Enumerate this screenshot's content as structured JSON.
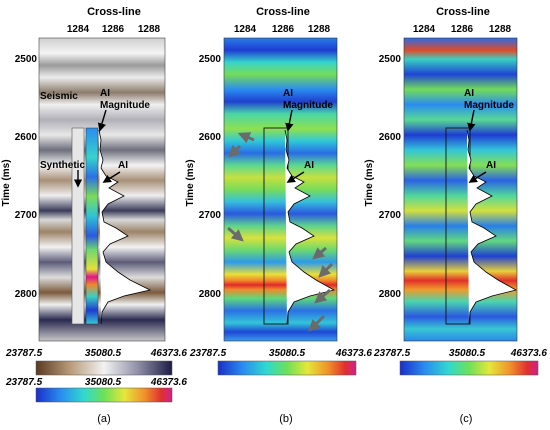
{
  "figure": {
    "panels": [
      {
        "id": "a",
        "caption": "(a)",
        "top_axis_title": "Cross-line",
        "top_ticks": [
          "1284",
          "1286",
          "1288"
        ],
        "y_axis_title": "Time (ms)",
        "y_ticks": [
          "2500",
          "2600",
          "2700",
          "2800"
        ],
        "annotations": [
          "Seismic",
          "AI Magnitude",
          "Synthetic",
          "AI"
        ],
        "colorbars": [
          {
            "min_label": "23787.5",
            "mid_label": "35080.5",
            "max_label": "46373.6",
            "palette": "brown-white-navy"
          },
          {
            "min_label": "23787.5",
            "mid_label": "35080.5",
            "max_label": "46373.6",
            "palette": "rainbow"
          }
        ]
      },
      {
        "id": "b",
        "caption": "(b)",
        "top_axis_title": "Cross-line",
        "top_ticks": [
          "1284",
          "1286",
          "1288"
        ],
        "y_axis_title": "Time (ms)",
        "y_ticks": [
          "2500",
          "2600",
          "2700",
          "2800"
        ],
        "annotations": [
          "AI Magnitude",
          "AI"
        ],
        "colorbars": [
          {
            "min_label": "23787.5",
            "mid_label": "35080.5",
            "max_label": "46373.6",
            "palette": "rainbow"
          }
        ]
      },
      {
        "id": "c",
        "caption": "(c)",
        "top_axis_title": "Cross-line",
        "top_ticks": [
          "1284",
          "1286",
          "1288"
        ],
        "y_axis_title": "Time (ms)",
        "y_ticks": [
          "2500",
          "2600",
          "2700",
          "2800"
        ],
        "annotations": [
          "AI Magnitude",
          "AI"
        ],
        "colorbars": [
          {
            "min_label": "23787.5",
            "mid_label": "35080.5",
            "max_label": "46373.6",
            "palette": "rainbow"
          }
        ]
      }
    ],
    "colors": {
      "arrow_gray": "#6b6b6b",
      "seismic_dark": "#26264a",
      "seismic_brown": "#7a5a3c",
      "rainbow_low": "#1e3cd2",
      "rainbow_high": "#e0148c"
    }
  }
}
